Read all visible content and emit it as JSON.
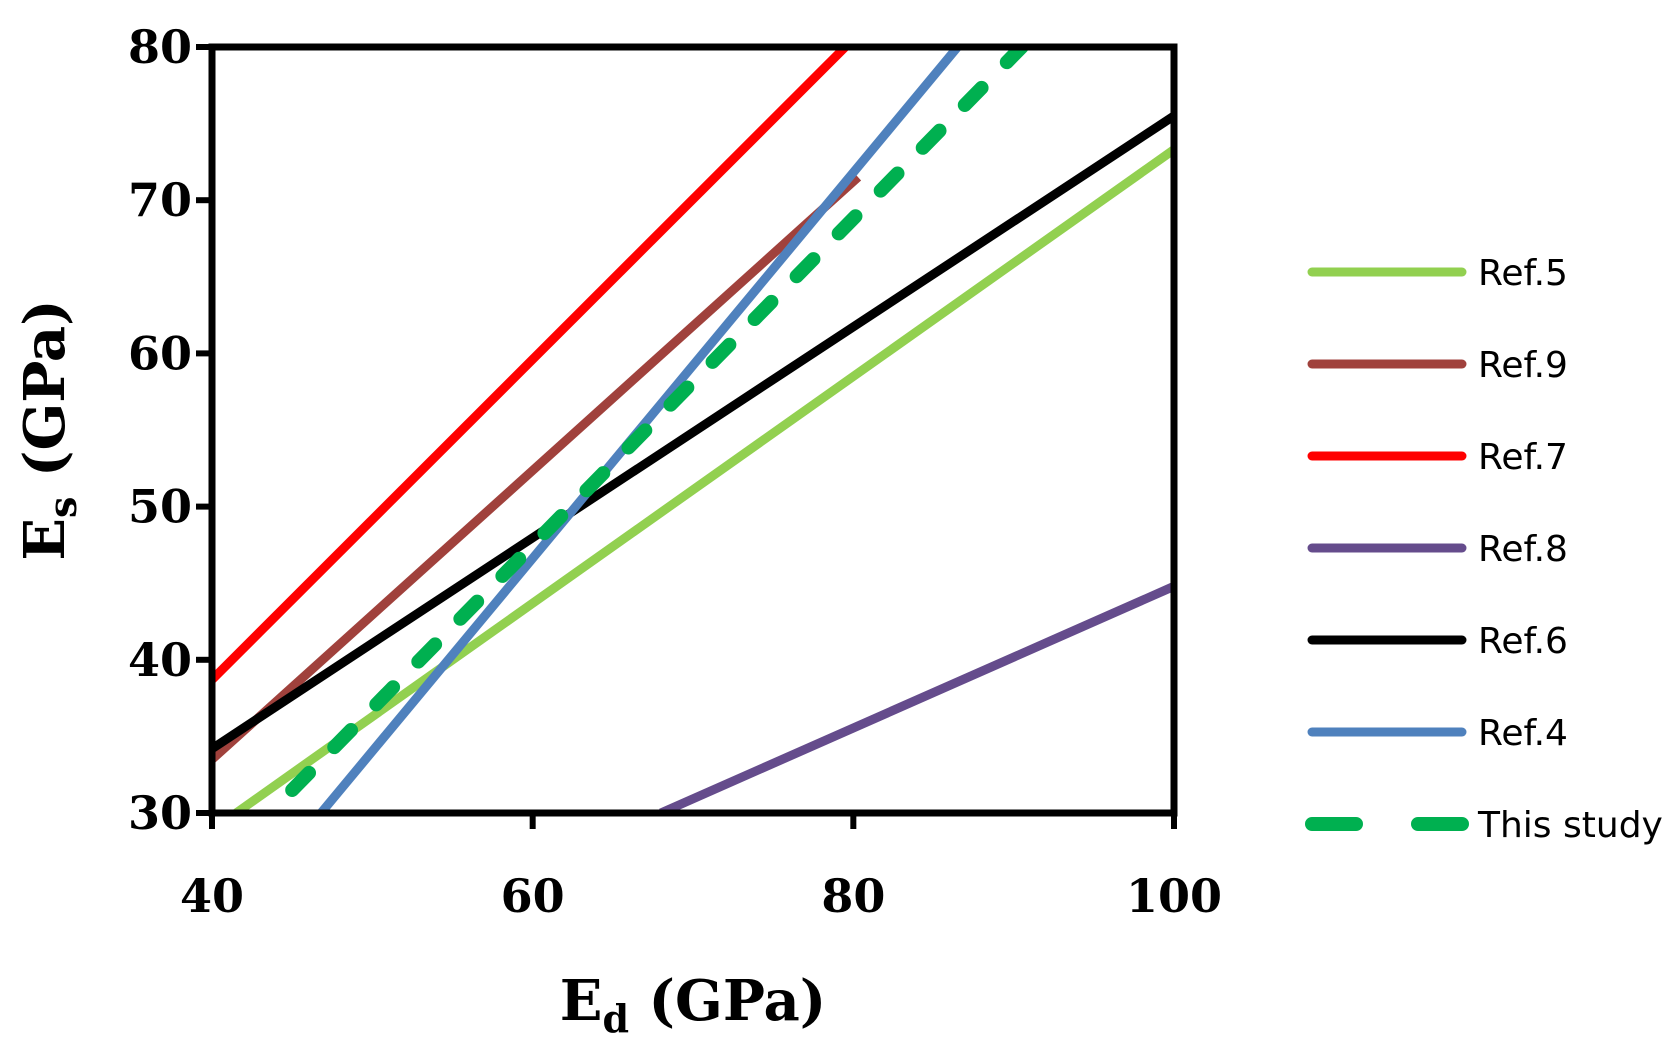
{
  "chart_data": {
    "type": "line",
    "title": "",
    "xlabel": {
      "main": "E",
      "sub": "d",
      "unit": " (GPa)"
    },
    "ylabel": {
      "main": "E",
      "sub": "s",
      "unit": " (GPa)"
    },
    "xlim": [
      40,
      100
    ],
    "ylim": [
      30,
      80
    ],
    "xticks": [
      "40",
      "60",
      "80",
      "100"
    ],
    "yticks": [
      "30",
      "40",
      "50",
      "60",
      "70",
      "80"
    ],
    "xtick_values": [
      40,
      60,
      80,
      100
    ],
    "ytick_values": [
      30,
      40,
      50,
      60,
      70,
      80
    ],
    "grid": false,
    "legend_position": "right",
    "series": [
      {
        "name": "Ref.5",
        "color": "#92D050",
        "dash": false,
        "x": [
          41.5,
          100
        ],
        "y": [
          30,
          73.3
        ]
      },
      {
        "name": "Ref.9",
        "color": "#A0413C",
        "dash": false,
        "x": [
          40,
          80.3
        ],
        "y": [
          33.5,
          71.5
        ]
      },
      {
        "name": "Ref.7",
        "color": "#FF0000",
        "dash": false,
        "x": [
          40,
          79.5
        ],
        "y": [
          38.7,
          80
        ]
      },
      {
        "name": "Ref.8",
        "color": "#654C8C",
        "dash": false,
        "x": [
          68,
          100
        ],
        "y": [
          30,
          44.8
        ]
      },
      {
        "name": "Ref.6",
        "color": "#000000",
        "dash": false,
        "x": [
          40,
          100
        ],
        "y": [
          34.2,
          75.5
        ]
      },
      {
        "name": "Ref.4",
        "color": "#4F81BD",
        "dash": false,
        "x": [
          46.8,
          86.5
        ],
        "y": [
          30,
          80
        ]
      },
      {
        "name": "This study",
        "color": "#00B050",
        "dash": true,
        "x": [
          45,
          90.5
        ],
        "y": [
          31.5,
          80
        ]
      }
    ]
  }
}
